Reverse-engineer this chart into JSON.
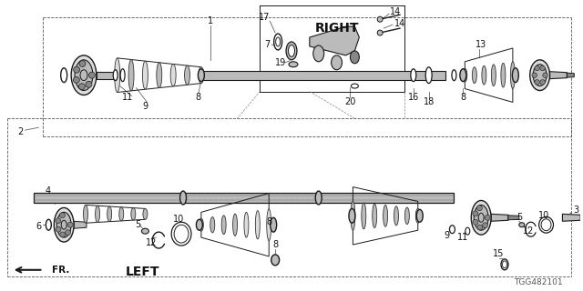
{
  "bg_color": "#ffffff",
  "line_color": "#1a1a1a",
  "part_number_text": "TGG482101",
  "right_label": "RIGHT",
  "left_label": "LEFT",
  "fr_label": "FR.",
  "label_fontsize": 7.0,
  "label_color": "#111111"
}
